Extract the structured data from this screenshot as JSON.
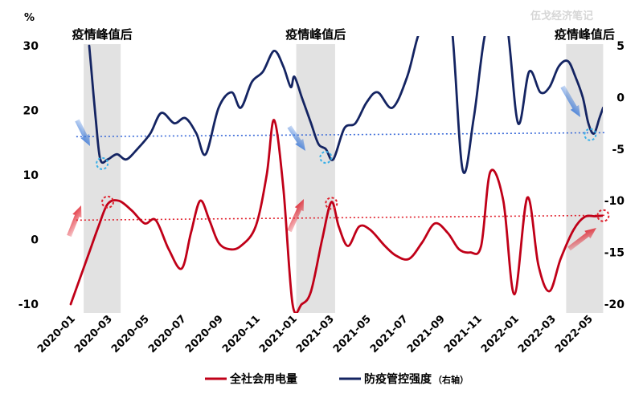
{
  "watermark": "伍戈经济笔记",
  "left_unit": "%",
  "chart_data": {
    "type": "line",
    "title": "",
    "xlabel": "",
    "ylabel": "%",
    "y_left_lim": [
      -10,
      30
    ],
    "y_right_lim": [
      -20,
      5
    ],
    "y_left_ticks": [
      "30",
      "20",
      "10",
      "0",
      "-10"
    ],
    "y_right_ticks": [
      "5",
      "0",
      "-5",
      "-10",
      "-15",
      "-20"
    ],
    "x_tick_labels": [
      "2020-01",
      "2020-03",
      "2020-05",
      "2020-07",
      "2020-09",
      "2020-11",
      "2021-01",
      "2021-03",
      "2021-05",
      "2021-07",
      "2021-09",
      "2021-11",
      "2022-01",
      "2022-03",
      "2022-05"
    ],
    "x_tick_months": [
      0,
      2,
      4,
      6,
      8,
      10,
      12,
      14,
      16,
      18,
      20,
      22,
      24,
      26,
      28
    ],
    "shaded_regions": [
      {
        "label": "疫情峰值后",
        "start": 0.7,
        "end": 2.7
      },
      {
        "label": "疫情峰值后",
        "start": 12.2,
        "end": 14.3
      },
      {
        "label": "疫情峰值后",
        "start": 26.8,
        "end": 28.8
      }
    ],
    "legend_position": "bottom",
    "colors": {
      "electricity": "#c00018",
      "control": "#142462",
      "shade": "#e2e2e2",
      "circle_red": "#e0202c",
      "circle_blue": "#3ab0e8"
    },
    "series": [
      {
        "name": "全社会用电量",
        "axis": "left",
        "x": [
          0,
          0.5,
          1,
          1.5,
          2,
          2.6,
          3.3,
          4,
          4.6,
          5.3,
          6,
          6.5,
          7,
          7.5,
          8,
          8.6,
          9.2,
          10,
          10.6,
          11,
          11.5,
          12,
          12.5,
          13,
          13.6,
          14.1,
          14.5,
          15,
          15.6,
          16.2,
          17,
          17.6,
          18.3,
          19,
          19.7,
          20.4,
          21,
          21.6,
          22.2,
          22.7,
          23.4,
          24,
          24.7,
          25.3,
          25.9,
          26.5,
          27.2,
          27.8,
          28.4,
          28.8
        ],
        "values": [
          -10,
          -6,
          -2,
          2,
          5.5,
          6,
          4.5,
          2.5,
          3,
          -1.5,
          -4.5,
          1,
          6,
          3,
          -0.5,
          -1.5,
          -1,
          2,
          10,
          18.5,
          8,
          -10,
          -10,
          -8,
          0,
          5.8,
          2,
          -1,
          2,
          1.5,
          -1,
          -2.5,
          -3,
          -0.5,
          2.5,
          1,
          -1.5,
          -2,
          -1,
          10.5,
          6,
          -8.5,
          6.5,
          -4,
          -8,
          -3,
          1.5,
          3.5,
          3.6,
          3.7
        ]
      },
      {
        "name": "防疫管控强度（右轴）",
        "axis": "right",
        "x": [
          1,
          1.1,
          1.35,
          1.6,
          2,
          2.5,
          3,
          3.6,
          4.3,
          4.9,
          5.6,
          6.2,
          6.8,
          7.3,
          8,
          8.7,
          9.2,
          9.8,
          10.4,
          11,
          11.5,
          11.9,
          12.1,
          12.5,
          13,
          13.4,
          13.8,
          14.2,
          14.8,
          15.4,
          16,
          16.6,
          17.4,
          18.2,
          18.8,
          19.4,
          20,
          20.6,
          21.2,
          21.8,
          22.4,
          23,
          23.6,
          24.2,
          24.8,
          25.4,
          25.9,
          26.4,
          26.9,
          27.3,
          27.7,
          28,
          28.3,
          28.6,
          28.8
        ],
        "values": [
          5,
          3,
          -2,
          -6,
          -6,
          -5.5,
          -6,
          -5,
          -3.5,
          -1.5,
          -2.5,
          -2,
          -3.5,
          -5.5,
          -1,
          0.5,
          -1,
          1.5,
          2.5,
          4.5,
          3,
          1,
          2,
          0,
          -2.5,
          -4.5,
          -5,
          -6,
          -3,
          -2.5,
          -0.5,
          0.5,
          -1,
          2,
          6,
          8,
          9,
          7,
          -7,
          -2,
          6,
          8,
          7,
          -2.5,
          2.5,
          0.5,
          1,
          3,
          3.5,
          2,
          0,
          -2.5,
          -3.5,
          -2,
          -1
        ]
      }
    ],
    "reference_lines": [
      {
        "axis": "right",
        "value": -3.8,
        "color": "#3a6ad8",
        "style": "dotted"
      },
      {
        "axis": "left",
        "value": 3.0,
        "color": "#e0202c",
        "style": "dotted"
      }
    ],
    "markers": [
      {
        "series": 0,
        "month": 2.0,
        "value": 5.8,
        "style": "dashed-circle",
        "color": "#e0202c"
      },
      {
        "series": 0,
        "month": 14.1,
        "value": 5.6,
        "style": "dashed-circle",
        "color": "#e0202c"
      },
      {
        "series": 0,
        "month": 28.8,
        "value": 3.7,
        "style": "dashed-circle",
        "color": "#e0202c"
      },
      {
        "series": 1,
        "month": 1.7,
        "value": -6.4,
        "style": "dashed-circle",
        "color": "#3ab0e8"
      },
      {
        "series": 1,
        "month": 13.8,
        "value": -5.8,
        "style": "dashed-circle",
        "color": "#3ab0e8"
      },
      {
        "series": 1,
        "month": 28.1,
        "value": -3.6,
        "style": "dashed-circle",
        "color": "#3ab0e8"
      }
    ]
  }
}
